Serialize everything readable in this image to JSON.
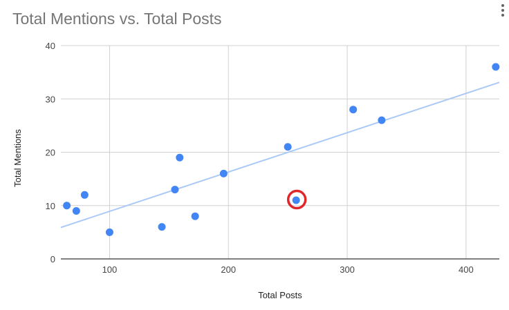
{
  "menu": {
    "icon": "more-vert-icon"
  },
  "chart_data": {
    "type": "scatter",
    "title": "Total Mentions vs. Total Posts",
    "xlabel": "Total Posts",
    "ylabel": "Total Mentions",
    "xlim": [
      59,
      428
    ],
    "ylim": [
      0,
      40
    ],
    "xticks": [
      100,
      200,
      300,
      400
    ],
    "yticks": [
      0,
      10,
      20,
      30,
      40
    ],
    "grid": true,
    "points": [
      {
        "x": 64,
        "y": 10
      },
      {
        "x": 72,
        "y": 9
      },
      {
        "x": 79,
        "y": 12
      },
      {
        "x": 100,
        "y": 5
      },
      {
        "x": 144,
        "y": 6
      },
      {
        "x": 155,
        "y": 13
      },
      {
        "x": 159,
        "y": 19
      },
      {
        "x": 172,
        "y": 8
      },
      {
        "x": 196,
        "y": 16
      },
      {
        "x": 250,
        "y": 21
      },
      {
        "x": 257,
        "y": 11
      },
      {
        "x": 305,
        "y": 28
      },
      {
        "x": 329,
        "y": 26
      },
      {
        "x": 425,
        "y": 36
      }
    ],
    "trendline": {
      "x": [
        59,
        428
      ],
      "y": [
        5.9,
        33.1
      ]
    },
    "highlight": {
      "x": 257,
      "y": 11,
      "color": "#e0262b"
    },
    "colors": {
      "points": "#4285f4",
      "trendline": "#abc9f7",
      "grid": "#d0d0d0",
      "baseline": "#333333"
    }
  }
}
